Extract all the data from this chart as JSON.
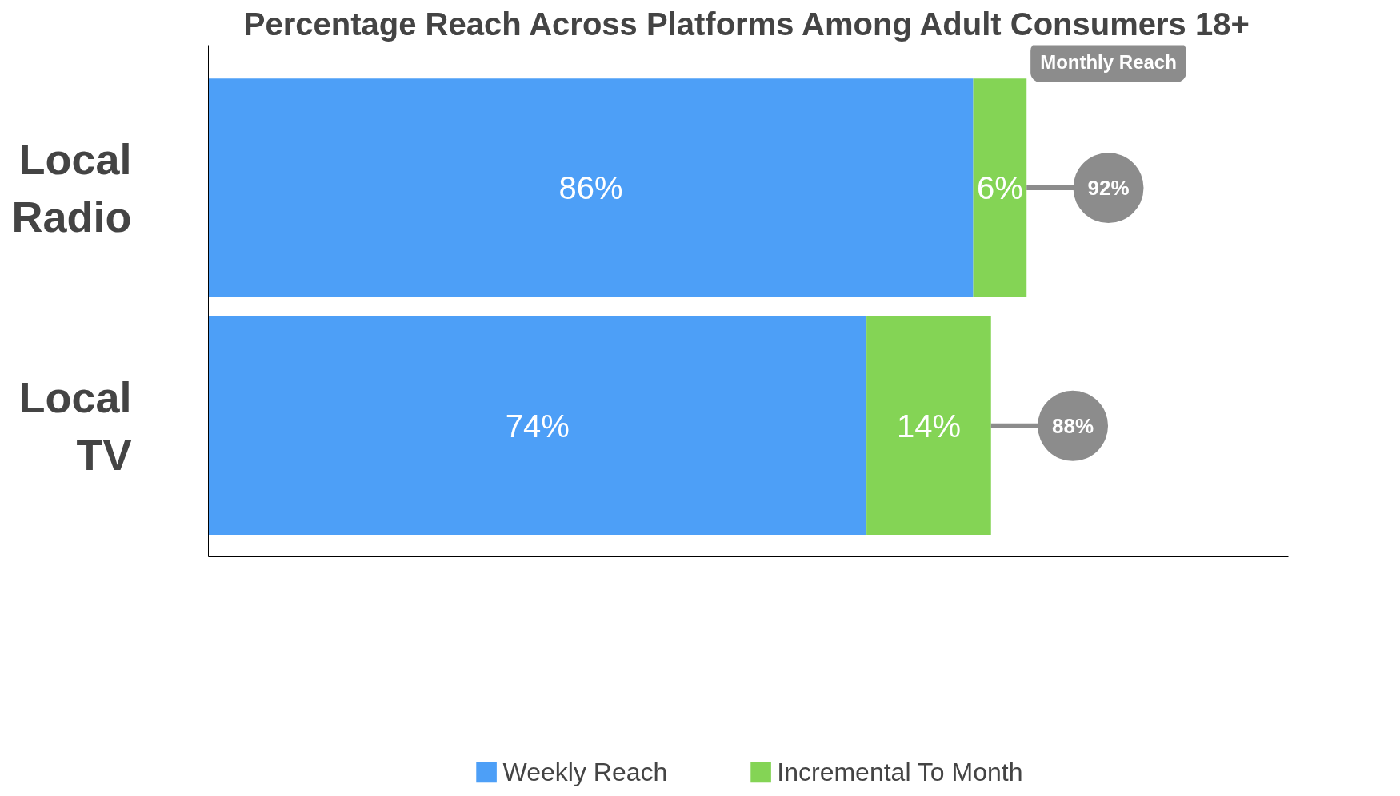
{
  "chart_data": {
    "type": "bar",
    "orientation": "horizontal",
    "stacked": true,
    "title": "Percentage Reach Across Platforms Among Adult Consumers 18+",
    "categories": [
      "Local\nRadio",
      "Local\nTV"
    ],
    "series": [
      {
        "name": "Weekly Reach",
        "color": "#4d9ff7",
        "values": [
          86,
          74
        ],
        "value_labels": [
          "86%",
          "74%"
        ]
      },
      {
        "name": "Incremental To Month",
        "color": "#84d455",
        "values": [
          6,
          14
        ],
        "value_labels": [
          "6%",
          "14%"
        ]
      }
    ],
    "totals": [
      "92%",
      "88%"
    ],
    "annotations": [
      "Monthly Reach"
    ],
    "legend": "bottom",
    "grid": false,
    "tick_labels": "y"
  }
}
